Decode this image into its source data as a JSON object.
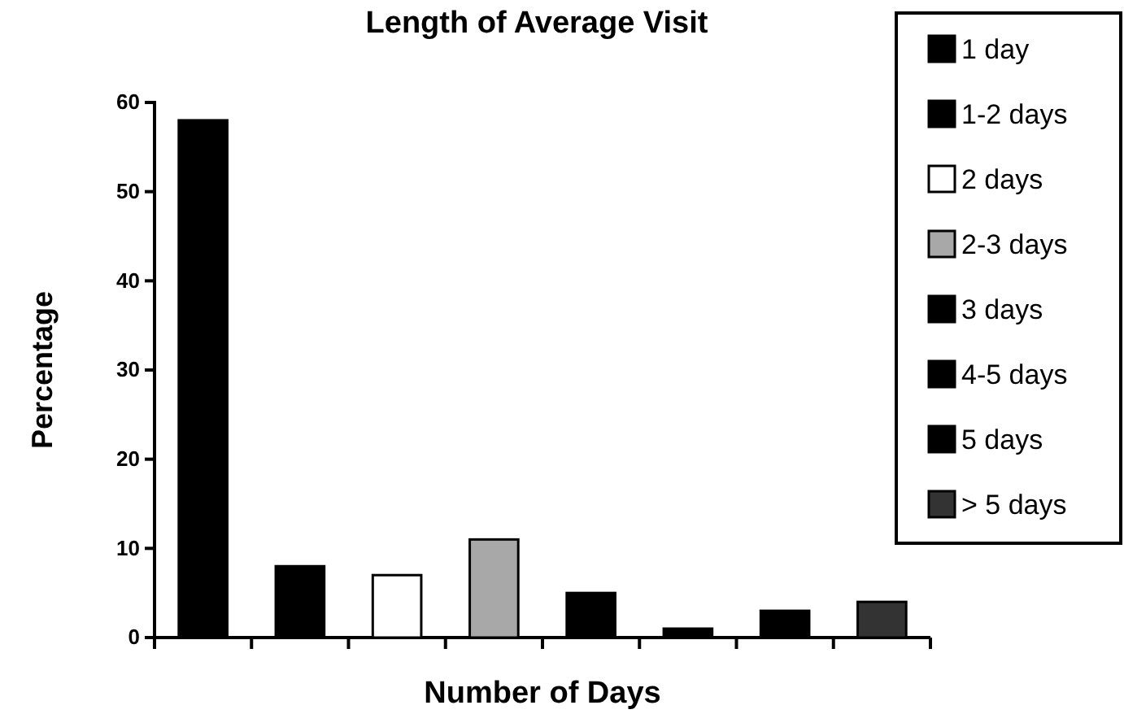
{
  "chart_data": {
    "type": "bar",
    "title": "Length of Average Visit",
    "xlabel": "Number of Days",
    "ylabel": "Percentage",
    "categories": [
      null,
      null,
      null,
      null,
      null,
      null,
      null,
      null
    ],
    "series": [
      {
        "name": "1 day",
        "color": "#000000",
        "values": [
          58,
          null,
          null,
          null,
          null,
          null,
          null,
          null
        ]
      },
      {
        "name": "1-2 days",
        "color": "#000000",
        "values": [
          null,
          8,
          null,
          null,
          null,
          null,
          null,
          null
        ]
      },
      {
        "name": "2 days",
        "color": "#ffffff",
        "values": [
          null,
          null,
          7,
          null,
          null,
          null,
          null,
          null
        ]
      },
      {
        "name": "2-3 days",
        "color": "#a8a8a8",
        "values": [
          null,
          null,
          null,
          11,
          null,
          null,
          null,
          null
        ]
      },
      {
        "name": "3 days",
        "color": "#000000",
        "values": [
          null,
          null,
          null,
          null,
          5,
          null,
          null,
          null
        ]
      },
      {
        "name": "4-5 days",
        "color": "#000000",
        "values": [
          null,
          null,
          null,
          null,
          null,
          1,
          null,
          null
        ]
      },
      {
        "name": "5 days",
        "color": "#000000",
        "values": [
          null,
          null,
          null,
          null,
          null,
          null,
          3,
          null
        ]
      },
      {
        "name": "> 5 days",
        "color": "#333333",
        "values": [
          null,
          null,
          null,
          null,
          null,
          null,
          null,
          4
        ]
      }
    ],
    "ylim": [
      0,
      60
    ],
    "yticks": [
      0,
      10,
      20,
      30,
      40,
      50,
      60
    ],
    "grid": false,
    "legend": "top right"
  }
}
